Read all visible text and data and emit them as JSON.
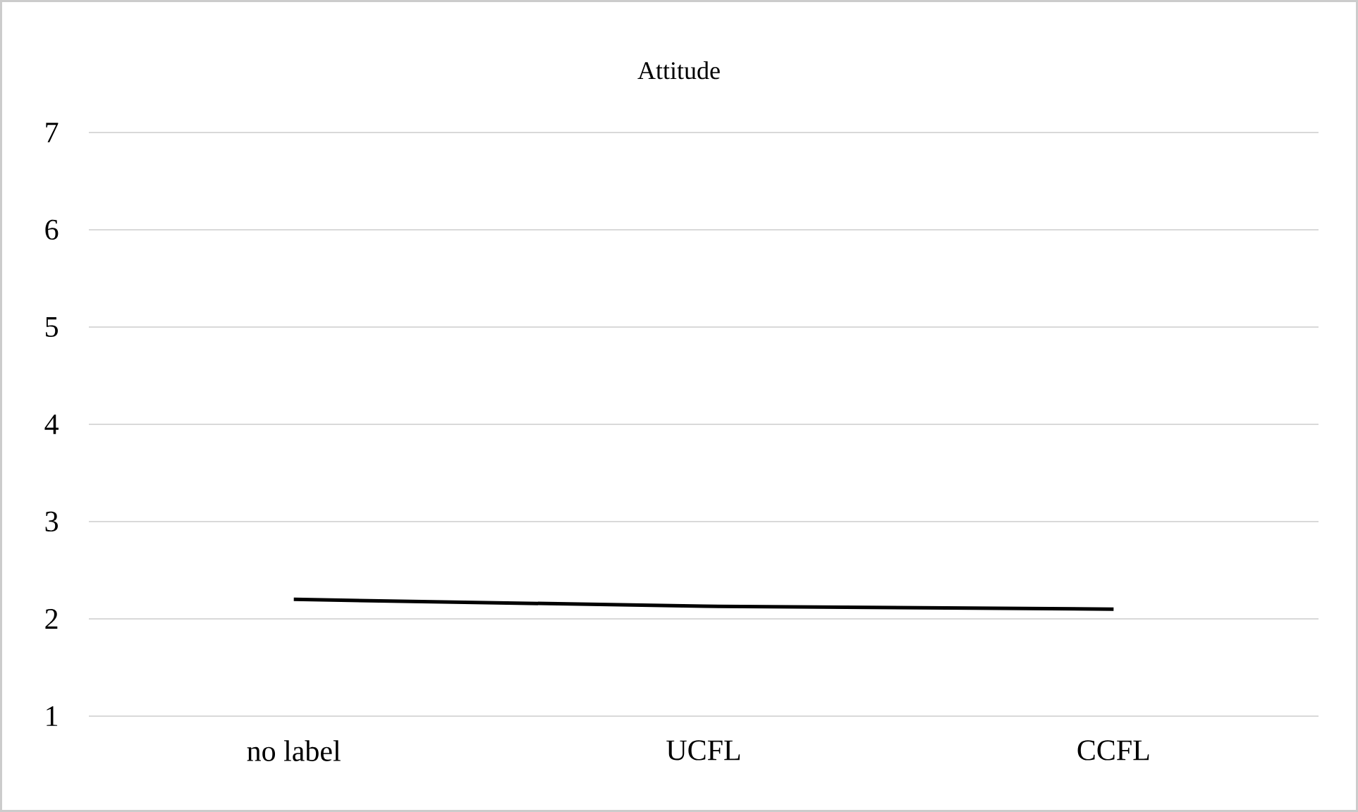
{
  "chart_data": {
    "type": "line",
    "title": "Attitude",
    "categories": [
      "no label",
      "UCFL",
      "CCFL"
    ],
    "series": [
      {
        "color": "#000000",
        "values": [
          2.2,
          2.13,
          2.1
        ]
      }
    ],
    "ylim": [
      1,
      7
    ],
    "yticks": [
      1,
      2,
      3,
      4,
      5,
      6,
      7
    ],
    "grid": "y",
    "marker": "none",
    "line_style": "solid"
  }
}
